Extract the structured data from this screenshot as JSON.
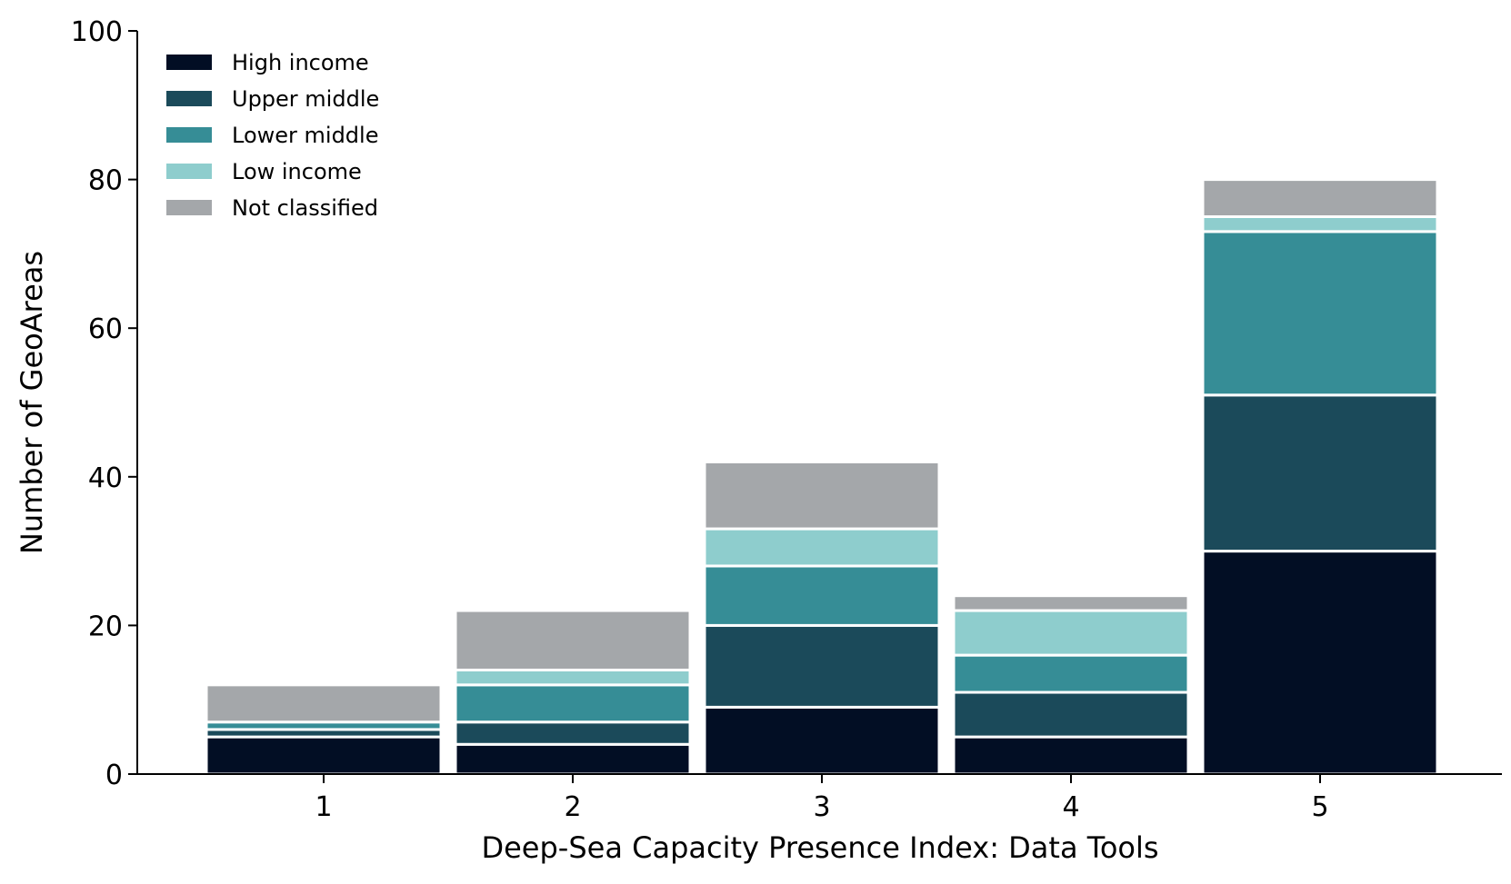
{
  "chart_data": {
    "type": "bar",
    "stacked": true,
    "xlabel": "Deep-Sea Capacity Presence Index: Data Tools",
    "ylabel": "Number of GeoAreas",
    "categories": [
      "1",
      "2",
      "3",
      "4",
      "5"
    ],
    "ylim": [
      0,
      100
    ],
    "yticks": [
      0,
      20,
      40,
      60,
      80,
      100
    ],
    "grid": false,
    "legend_position": "top-left",
    "series": [
      {
        "name": "High income",
        "color": "#020e24",
        "values": [
          5,
          4,
          9,
          5,
          30
        ]
      },
      {
        "name": "Upper middle",
        "color": "#1b4a5a",
        "values": [
          1,
          3,
          11,
          6,
          21
        ]
      },
      {
        "name": "Lower middle",
        "color": "#368d96",
        "values": [
          1,
          5,
          8,
          5,
          22
        ]
      },
      {
        "name": "Low income",
        "color": "#8ecdcd",
        "values": [
          0,
          2,
          5,
          6,
          2
        ]
      },
      {
        "name": "Not classified",
        "color": "#a4a7aa",
        "values": [
          5,
          8,
          9,
          2,
          5
        ]
      }
    ]
  }
}
